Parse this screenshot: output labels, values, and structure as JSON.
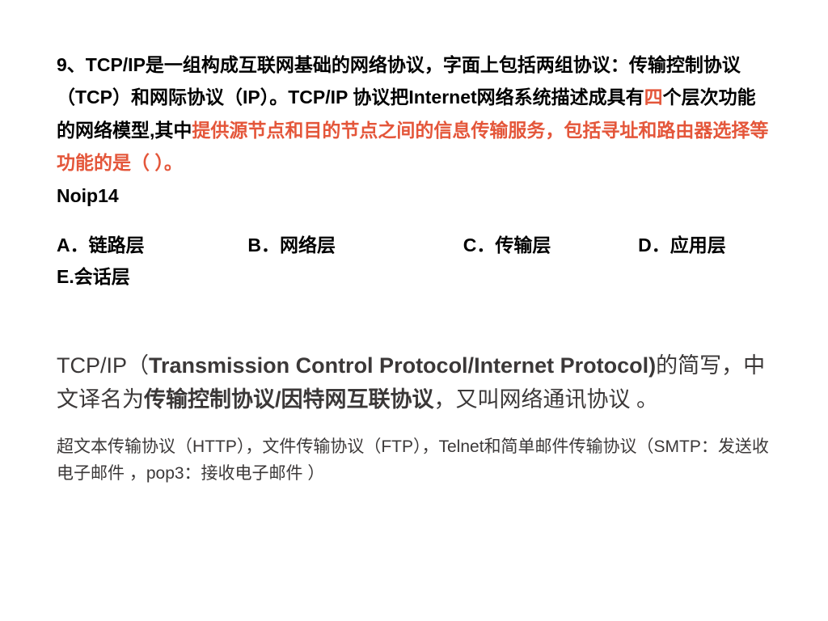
{
  "question": {
    "prefix": "9、TCP/IP是一组构成互联网基础的网络协议，字面上包括两组协议：传输控制协议（TCP）和网际协议（IP）。TCP/IP 协议把Internet网络系统描述成具有",
    "four": "四",
    "mid": "个层次功能的网络模型,其中",
    "highlight": "提供源节点和目的节点之间的信息传输服务，包括寻址和路由器选择等功能的是（  ）。",
    "noip": "Noip14"
  },
  "options": {
    "a": "A．链路层",
    "b": "B．网络层",
    "c": "C．传输层",
    "d": "D．应用层",
    "e": "E.会话层"
  },
  "explain1": {
    "p1": "TCP/IP（",
    "p2_bold": "Transmission Control Protocol/Internet Protocol)",
    "p3": "的简写，中文译名为",
    "p4_bold": "传输控制协议/因特网互联协议",
    "p5": "，又叫网络通讯协议 。"
  },
  "explain2": "超文本传输协议（HTTP），文件传输协议（FTP），Telnet和简单邮件传输协议（SMTP：发送收电子邮件 ，pop3：接收电子邮件 ）"
}
